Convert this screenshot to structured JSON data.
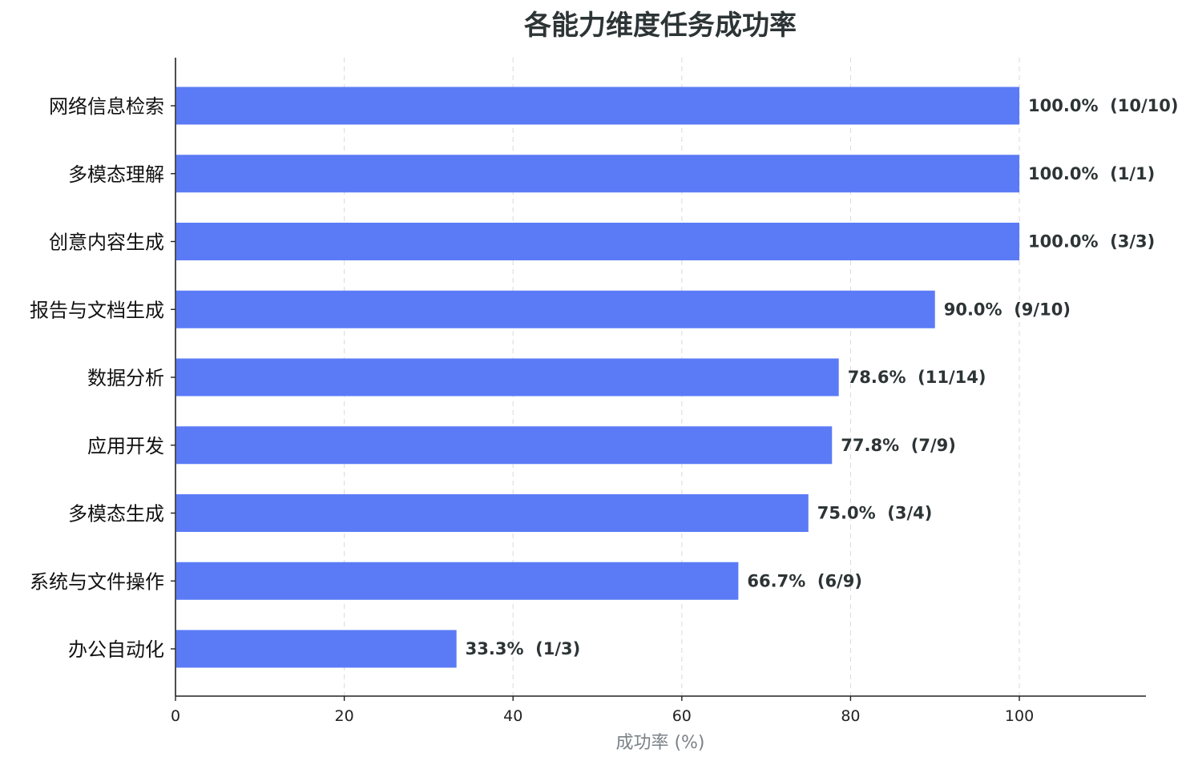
{
  "chart_data": {
    "type": "bar",
    "orientation": "horizontal",
    "title": "各能力维度任务成功率",
    "xlabel": "成功率 (%)",
    "ylabel": "",
    "xlim": [
      0,
      115
    ],
    "xticks": [
      0,
      20,
      40,
      60,
      80,
      100
    ],
    "grid": "vertical-dashed",
    "bar_color": "#5b7bf6",
    "categories": [
      "网络信息检索",
      "多模态理解",
      "创意内容生成",
      "报告与文档生成",
      "数据分析",
      "应用开发",
      "多模态生成",
      "系统与文件操作",
      "办公自动化"
    ],
    "values": [
      100.0,
      100.0,
      100.0,
      90.0,
      78.6,
      77.8,
      75.0,
      66.7,
      33.3
    ],
    "data_labels": [
      "100.0%  (10/10)",
      "100.0%  (1/1)",
      "100.0%  (3/3)",
      "90.0%  (9/10)",
      "78.6%  (11/14)",
      "77.8%  (7/9)",
      "75.0%  (3/4)",
      "66.7%  (6/9)",
      "33.3%  (1/3)"
    ]
  }
}
